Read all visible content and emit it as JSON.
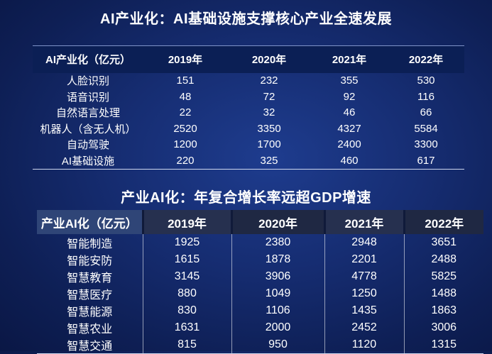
{
  "title1": "AI产业化：AI基础设施支撑核心产业全速发展",
  "title2": "产业AI化：年复合增长率远超GDP增速",
  "table1": {
    "headers": [
      "AI产业化（亿元）",
      "2019年",
      "2020年",
      "2021年",
      "2022年"
    ],
    "rows": [
      [
        "人脸识别",
        "151",
        "232",
        "355",
        "530"
      ],
      [
        "语音识别",
        "48",
        "72",
        "92",
        "116"
      ],
      [
        "自然语言处理",
        "22",
        "32",
        "46",
        "66"
      ],
      [
        "机器人（含无人机）",
        "2520",
        "3350",
        "4327",
        "5584"
      ],
      [
        "自动驾驶",
        "1200",
        "1700",
        "2400",
        "3300"
      ],
      [
        "AI基础设施",
        "220",
        "325",
        "460",
        "617"
      ]
    ]
  },
  "table2": {
    "headers": [
      "产业AI化（亿元）",
      "2019年",
      "2020年",
      "2021年",
      "2022年"
    ],
    "rows": [
      [
        "智能制造",
        "1925",
        "2380",
        "2948",
        "3651"
      ],
      [
        "智能安防",
        "1615",
        "1878",
        "2201",
        "2488"
      ],
      [
        "智慧教育",
        "3145",
        "3906",
        "4778",
        "5825"
      ],
      [
        "智慧医疗",
        "880",
        "1049",
        "1250",
        "1488"
      ],
      [
        "智慧能源",
        "830",
        "1106",
        "1435",
        "1863"
      ],
      [
        "智慧农业",
        "1631",
        "2000",
        "2452",
        "3006"
      ],
      [
        "智慧交通",
        "815",
        "950",
        "1120",
        "1315"
      ]
    ]
  }
}
